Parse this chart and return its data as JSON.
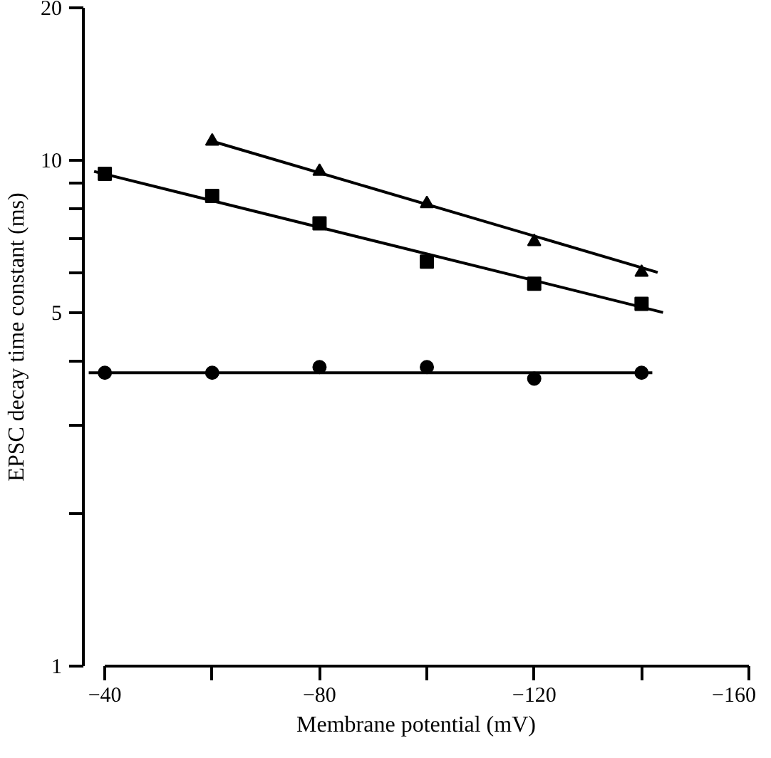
{
  "chart_data": {
    "type": "scatter",
    "xlabel": "Membrane potential (mV)",
    "ylabel": "EPSC decay time constant (ms)",
    "log": "y",
    "grid": false,
    "xlim": [
      -36,
      -160
    ],
    "ylim": [
      1,
      20
    ],
    "xticks": [
      -40,
      {
        "value": -60,
        "label": null
      },
      -80,
      {
        "value": -100,
        "label": null
      },
      -120,
      {
        "value": -140,
        "label": null
      },
      -160
    ],
    "yticks": [
      1,
      {
        "value": 2,
        "label": null
      },
      {
        "value": 3,
        "label": null
      },
      {
        "value": 4,
        "label": null
      },
      5,
      {
        "value": 6,
        "label": null
      },
      {
        "value": 7,
        "label": null
      },
      {
        "value": 8,
        "label": null
      },
      {
        "value": 9,
        "label": null
      },
      10,
      20
    ],
    "series": [
      {
        "marker": "triangle",
        "color": "#000000",
        "x": [
          -60,
          -80,
          -100,
          -120,
          -140
        ],
        "values": [
          10.9,
          9.5,
          8.2,
          6.9,
          6.0
        ]
      },
      {
        "marker": "square",
        "color": "#000000",
        "x": [
          -40,
          -60,
          -80,
          -100,
          -120,
          -140
        ],
        "values": [
          9.4,
          8.5,
          7.5,
          6.3,
          5.7,
          5.2
        ]
      },
      {
        "marker": "circle",
        "color": "#000000",
        "x": [
          -40,
          -60,
          -80,
          -100,
          -120,
          -140
        ],
        "values": [
          3.8,
          3.8,
          3.9,
          3.9,
          3.7,
          3.8
        ]
      },
      {
        "type": "line",
        "color": "#000000",
        "x": [
          -60,
          -143
        ],
        "values": [
          10.9,
          6.0
        ]
      },
      {
        "type": "line",
        "color": "#000000",
        "x": [
          -38,
          -144
        ],
        "values": [
          9.5,
          5.0
        ]
      },
      {
        "type": "line",
        "color": "#000000",
        "x": [
          -37,
          -142
        ],
        "values": [
          3.8,
          3.8
        ]
      }
    ]
  }
}
